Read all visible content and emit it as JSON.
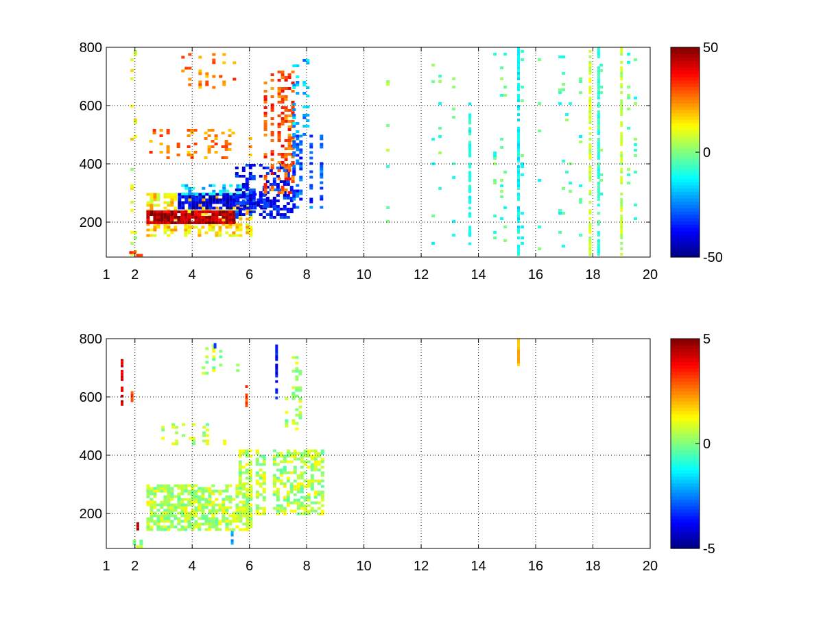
{
  "chart_data": [
    {
      "type": "heatmap",
      "title": "",
      "xlabel": "",
      "ylabel": "",
      "xlim": [
        1,
        20
      ],
      "ylim": [
        80,
        800
      ],
      "x_ticks": [
        "1",
        "2",
        "4",
        "6",
        "8",
        "10",
        "12",
        "14",
        "16",
        "18",
        "20"
      ],
      "x_tick_values": [
        1,
        2,
        4,
        6,
        8,
        10,
        12,
        14,
        16,
        18,
        20
      ],
      "y_ticks": [
        "200",
        "400",
        "600",
        "800"
      ],
      "y_tick_values": [
        200,
        400,
        600,
        800
      ],
      "grid": true,
      "colorbar": {
        "min": -50,
        "max": 50,
        "ticks": [
          "50",
          "0",
          "-50"
        ],
        "tick_values": [
          50,
          0,
          -50
        ],
        "colormap": "jet"
      },
      "regions": [
        {
          "x0": 1.0,
          "x1": 2.0,
          "y0": 85,
          "y1": 800,
          "value": 10,
          "density": 0.12
        },
        {
          "x0": 1.8,
          "x1": 2.2,
          "y0": 85,
          "y1": 110,
          "value": 30,
          "density": 0.6
        },
        {
          "x0": 2.4,
          "x1": 6.0,
          "y0": 150,
          "y1": 300,
          "value": 15,
          "density": 0.55
        },
        {
          "x0": 2.4,
          "x1": 5.5,
          "y0": 200,
          "y1": 240,
          "value": 45,
          "density": 0.85
        },
        {
          "x0": 3.5,
          "x1": 6.5,
          "y0": 250,
          "y1": 300,
          "value": -40,
          "density": 0.75
        },
        {
          "x0": 3.5,
          "x1": 6.0,
          "y0": 300,
          "y1": 330,
          "value": -15,
          "density": 0.5
        },
        {
          "x0": 5.5,
          "x1": 7.5,
          "y0": 220,
          "y1": 400,
          "value": -35,
          "density": 0.5
        },
        {
          "x0": 6.5,
          "x1": 7.5,
          "y0": 300,
          "y1": 720,
          "value": 30,
          "density": 0.45
        },
        {
          "x0": 7.5,
          "x1": 8.5,
          "y0": 250,
          "y1": 500,
          "value": -30,
          "density": 0.5
        },
        {
          "x0": 2.5,
          "x1": 6.0,
          "y0": 420,
          "y1": 520,
          "value": 25,
          "density": 0.3
        },
        {
          "x0": 3.5,
          "x1": 5.8,
          "y0": 660,
          "y1": 780,
          "value": 25,
          "density": 0.3
        },
        {
          "x0": 7.5,
          "x1": 8.0,
          "y0": 500,
          "y1": 760,
          "value": -20,
          "density": 0.3
        },
        {
          "x0": 8.5,
          "x1": 12.0,
          "y0": 85,
          "y1": 800,
          "value": 0,
          "density": 0.05
        },
        {
          "x0": 12.0,
          "x1": 20.0,
          "y0": 85,
          "y1": 800,
          "value": -5,
          "density": 0.12
        }
      ],
      "stripes": [
        {
          "x": 13.7,
          "y0": 120,
          "y1": 620,
          "value": -10
        },
        {
          "x": 15.4,
          "y0": 85,
          "y1": 800,
          "value": -12
        },
        {
          "x": 17.9,
          "y0": 85,
          "y1": 800,
          "value": 8
        },
        {
          "x": 18.2,
          "y0": 85,
          "y1": 800,
          "value": -8
        },
        {
          "x": 19.0,
          "y0": 85,
          "y1": 800,
          "value": 6
        }
      ]
    },
    {
      "type": "heatmap",
      "title": "",
      "xlabel": "",
      "ylabel": "",
      "xlim": [
        1,
        20
      ],
      "ylim": [
        80,
        800
      ],
      "x_ticks": [
        "1",
        "2",
        "4",
        "6",
        "8",
        "10",
        "12",
        "14",
        "16",
        "18",
        "20"
      ],
      "x_tick_values": [
        1,
        2,
        4,
        6,
        8,
        10,
        12,
        14,
        16,
        18,
        20
      ],
      "y_ticks": [
        "200",
        "400",
        "600",
        "800"
      ],
      "y_tick_values": [
        200,
        400,
        600,
        800
      ],
      "grid": true,
      "colorbar": {
        "min": -5,
        "max": 5,
        "ticks": [
          "5",
          "0",
          "-5"
        ],
        "tick_values": [
          5,
          0,
          -5
        ],
        "colormap": "jet"
      },
      "regions": [
        {
          "x0": 2.4,
          "x1": 6.0,
          "y0": 140,
          "y1": 300,
          "value": 0.5,
          "density": 0.7
        },
        {
          "x0": 5.5,
          "x1": 8.5,
          "y0": 200,
          "y1": 420,
          "value": 0.5,
          "density": 0.55
        },
        {
          "x0": 2.8,
          "x1": 6.0,
          "y0": 440,
          "y1": 510,
          "value": 0.5,
          "density": 0.3
        },
        {
          "x0": 3.5,
          "x1": 5.8,
          "y0": 680,
          "y1": 780,
          "value": 0.5,
          "density": 0.25
        },
        {
          "x0": 7.0,
          "x1": 8.0,
          "y0": 480,
          "y1": 740,
          "value": 0.5,
          "density": 0.3
        },
        {
          "x0": 1.8,
          "x1": 2.2,
          "y0": 90,
          "y1": 110,
          "value": 0.5,
          "density": 0.6
        }
      ],
      "stripes": [
        {
          "x": 1.55,
          "y0": 570,
          "y1": 730,
          "value": 4
        },
        {
          "x": 1.9,
          "y0": 590,
          "y1": 620,
          "value": 3
        },
        {
          "x": 2.1,
          "y0": 150,
          "y1": 170,
          "value": 4.5
        },
        {
          "x": 4.8,
          "y0": 770,
          "y1": 785,
          "value": -3
        },
        {
          "x": 5.4,
          "y0": 90,
          "y1": 140,
          "value": -2
        },
        {
          "x": 5.9,
          "y0": 560,
          "y1": 640,
          "value": 3
        },
        {
          "x": 6.95,
          "y0": 600,
          "y1": 780,
          "value": -3.5
        },
        {
          "x": 15.4,
          "y0": 700,
          "y1": 800,
          "value": 2
        }
      ]
    }
  ]
}
